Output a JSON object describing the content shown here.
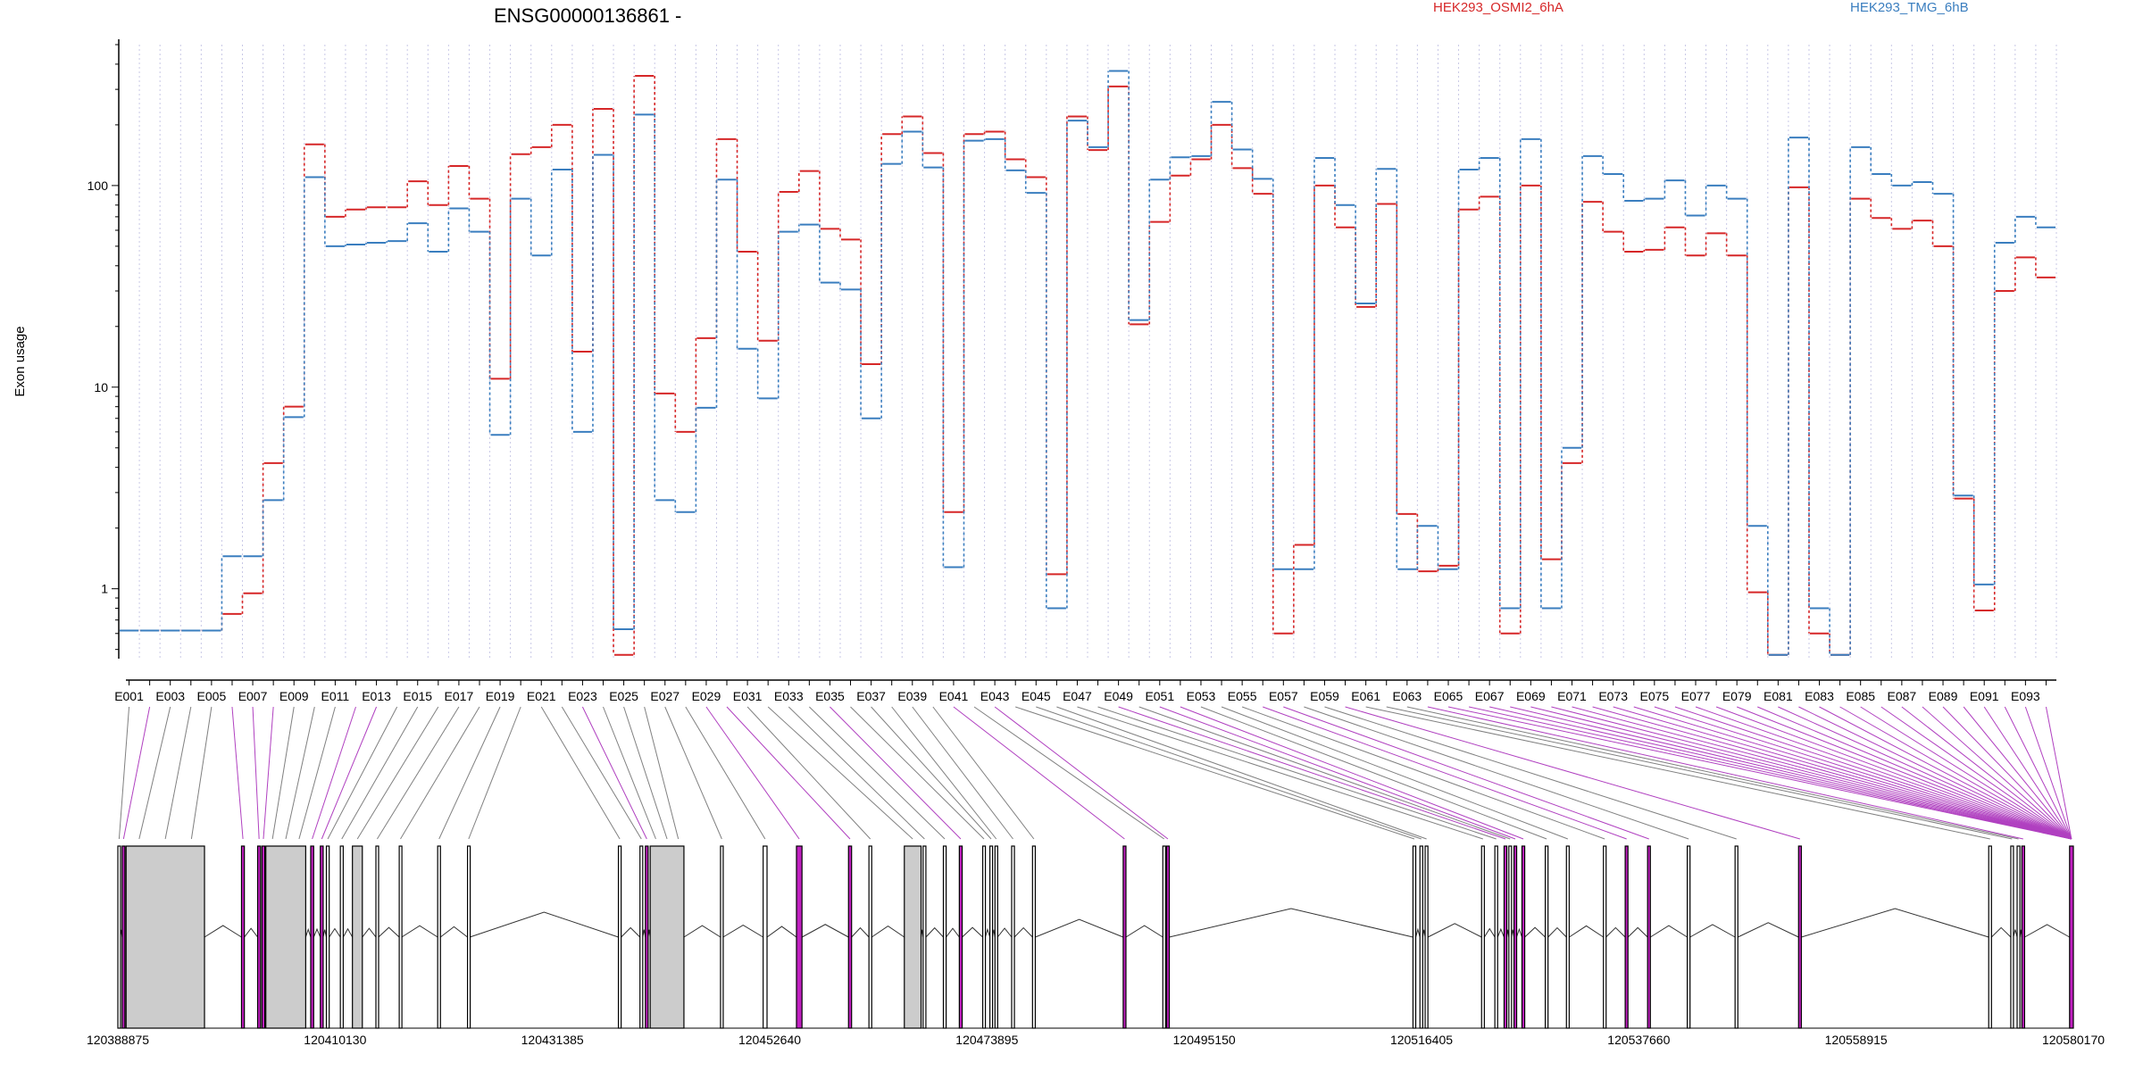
{
  "chart_data": {
    "type": "line",
    "title": "ENSG00000136861 -",
    "ylabel": "Exon usage",
    "y_scale": "log",
    "ylim": [
      0.45,
      500
    ],
    "y_ticks": [
      {
        "value": 1,
        "label": "1"
      },
      {
        "value": 10,
        "label": "10"
      },
      {
        "value": 100,
        "label": "100"
      }
    ],
    "grid": "vertical dotted lines at each exon bin",
    "legend_position": "top",
    "colors": {
      "HEK293_OSMI2_6hA": "#d62728",
      "HEK293_TMG_6hB": "#3a7ebf",
      "exon_highlight": "#c020c0",
      "exon_grey": "#cccccc"
    },
    "categories": [
      "E001",
      "E002",
      "E003",
      "E004",
      "E005",
      "E006",
      "E007",
      "E008",
      "E009",
      "E010",
      "E011",
      "E012",
      "E013",
      "E014",
      "E015",
      "E016",
      "E017",
      "E018",
      "E019",
      "E020",
      "E021",
      "E022",
      "E023",
      "E024",
      "E025",
      "E026",
      "E027",
      "E028",
      "E029",
      "E030",
      "E031",
      "E032",
      "E033",
      "E034",
      "E035",
      "E036",
      "E037",
      "E038",
      "E039",
      "E040",
      "E041",
      "E042",
      "E043",
      "E044",
      "E045",
      "E046",
      "E047",
      "E048",
      "E049",
      "E050",
      "E051",
      "E052",
      "E053",
      "E054",
      "E055",
      "E056",
      "E057",
      "E058",
      "E059",
      "E060",
      "E061",
      "E062",
      "E063",
      "E064",
      "E065",
      "E066",
      "E067",
      "E068",
      "E069",
      "E070",
      "E071",
      "E072",
      "E073",
      "E074",
      "E075",
      "E076",
      "E077",
      "E078",
      "E079",
      "E080",
      "E081",
      "E082",
      "E083",
      "E084",
      "E085",
      "E086",
      "E087",
      "E088",
      "E089",
      "E090",
      "E091",
      "E092",
      "E093",
      "E094"
    ],
    "x_tick_labels": [
      "E001",
      "E003",
      "E005",
      "E007",
      "E009",
      "E011",
      "E013",
      "E015",
      "E017",
      "E019",
      "E021",
      "E023",
      "E025",
      "E027",
      "E029",
      "E031",
      "E033",
      "E035",
      "E037",
      "E039",
      "E041",
      "E043",
      "E045",
      "E047",
      "E049",
      "E051",
      "E053",
      "E055",
      "E057",
      "E059",
      "E061",
      "E063",
      "E065",
      "E067",
      "E069",
      "E071",
      "E073",
      "E075",
      "E077",
      "E079",
      "E081",
      "E083",
      "E085",
      "E087",
      "E089",
      "E091",
      "E093"
    ],
    "series": [
      {
        "name": "HEK293_OSMI2_6hA",
        "values": [
          0.62,
          0.62,
          0.62,
          0.62,
          0.62,
          0.75,
          0.95,
          4.2,
          8,
          160,
          70,
          76,
          78,
          78,
          105,
          80,
          125,
          86,
          11,
          143,
          155,
          200,
          15,
          240,
          0.47,
          350,
          9.3,
          6,
          17.5,
          170,
          47,
          17,
          93,
          118,
          61,
          54,
          13,
          180,
          220,
          145,
          2.4,
          180,
          185,
          135,
          110,
          1.18,
          220,
          150,
          310,
          20.5,
          66,
          112,
          135,
          200,
          122,
          91,
          0.6,
          1.65,
          100,
          62,
          25,
          81,
          2.35,
          1.22,
          1.3,
          76,
          88,
          0.6,
          100,
          1.4,
          4.2,
          83,
          59,
          47,
          48,
          62,
          45,
          58,
          45,
          0.96,
          0.47,
          98,
          0.6,
          0.47,
          86,
          69,
          61,
          67,
          50,
          2.8,
          0.78,
          30,
          44,
          35
        ]
      },
      {
        "name": "HEK293_TMG_6hB",
        "values": [
          0.62,
          0.62,
          0.62,
          0.62,
          0.62,
          1.45,
          1.45,
          2.75,
          7.1,
          110,
          50,
          51,
          52,
          53,
          65,
          47,
          77,
          59,
          5.8,
          86,
          45,
          120,
          6,
          142,
          0.63,
          225,
          2.75,
          2.4,
          7.9,
          107,
          15.5,
          8.8,
          59,
          64,
          33,
          30.5,
          7,
          128,
          185,
          123,
          1.28,
          167,
          170,
          119,
          92,
          0.8,
          210,
          155,
          370,
          21.5,
          107,
          138,
          140,
          260,
          151,
          108,
          1.25,
          1.25,
          137,
          80,
          26,
          121,
          1.25,
          2.05,
          1.25,
          120,
          137,
          0.8,
          170,
          0.8,
          5,
          140,
          114,
          84,
          86,
          106,
          71,
          100,
          86,
          2.05,
          0.47,
          173,
          0.8,
          0.47,
          155,
          114,
          100,
          104,
          91,
          2.9,
          1.05,
          52,
          70,
          62
        ]
      }
    ]
  },
  "gene_model": {
    "coordinate_labels": [
      "120388875",
      "120410130",
      "120431385",
      "120452640",
      "120473895",
      "120495150",
      "120516405",
      "120537660",
      "120558915",
      "120580170"
    ],
    "genomic_range": [
      120388875,
      120580170
    ],
    "exons": [
      {
        "start": 120388875,
        "end": 120389120,
        "highlight": false
      },
      {
        "start": 120389300,
        "end": 120389560,
        "highlight": true
      },
      {
        "start": 120389680,
        "end": 120397350,
        "highlight": false
      },
      {
        "start": 120400970,
        "end": 120401250,
        "highlight": true
      },
      {
        "start": 120402550,
        "end": 120402830,
        "highlight": true
      },
      {
        "start": 120402970,
        "end": 120403250,
        "highlight": true
      },
      {
        "start": 120403350,
        "end": 120407250,
        "highlight": false
      },
      {
        "start": 120407740,
        "end": 120408030,
        "highlight": true
      },
      {
        "start": 120408680,
        "end": 120408960,
        "highlight": true
      },
      {
        "start": 120409270,
        "end": 120409550,
        "highlight": false
      },
      {
        "start": 120410640,
        "end": 120410920,
        "highlight": false
      },
      {
        "start": 120411820,
        "end": 120412790,
        "highlight": false
      },
      {
        "start": 120414120,
        "end": 120414370,
        "highlight": false
      },
      {
        "start": 120416400,
        "end": 120416640,
        "highlight": false
      },
      {
        "start": 120420160,
        "end": 120420430,
        "highlight": false
      },
      {
        "start": 120423080,
        "end": 120423300,
        "highlight": false
      },
      {
        "start": 120437840,
        "end": 120438110,
        "highlight": false
      },
      {
        "start": 120439950,
        "end": 120440220,
        "highlight": false
      },
      {
        "start": 120440480,
        "end": 120440750,
        "highlight": true
      },
      {
        "start": 120440950,
        "end": 120444250,
        "highlight": false
      },
      {
        "start": 120447830,
        "end": 120448080,
        "highlight": false
      },
      {
        "start": 120452000,
        "end": 120452380,
        "highlight": false
      },
      {
        "start": 120455260,
        "end": 120455800,
        "highlight": true
      },
      {
        "start": 120460350,
        "end": 120460650,
        "highlight": true
      },
      {
        "start": 120462350,
        "end": 120462620,
        "highlight": false
      },
      {
        "start": 120465810,
        "end": 120467450,
        "highlight": false
      },
      {
        "start": 120467650,
        "end": 120467920,
        "highlight": false
      },
      {
        "start": 120469630,
        "end": 120469900,
        "highlight": false
      },
      {
        "start": 120471190,
        "end": 120471470,
        "highlight": true
      },
      {
        "start": 120473480,
        "end": 120473730,
        "highlight": false
      },
      {
        "start": 120474180,
        "end": 120474430,
        "highlight": false
      },
      {
        "start": 120474680,
        "end": 120474930,
        "highlight": false
      },
      {
        "start": 120476310,
        "end": 120476580,
        "highlight": false
      },
      {
        "start": 120478350,
        "end": 120478620,
        "highlight": false
      },
      {
        "start": 120487220,
        "end": 120487490,
        "highlight": true
      },
      {
        "start": 120491100,
        "end": 120491350,
        "highlight": false
      },
      {
        "start": 120491470,
        "end": 120491720,
        "highlight": true
      },
      {
        "start": 120515570,
        "end": 120515840,
        "highlight": false
      },
      {
        "start": 120516250,
        "end": 120516520,
        "highlight": false
      },
      {
        "start": 120516760,
        "end": 120517030,
        "highlight": false
      },
      {
        "start": 120522280,
        "end": 120522550,
        "highlight": false
      },
      {
        "start": 120523580,
        "end": 120523850,
        "highlight": false
      },
      {
        "start": 120524480,
        "end": 120524750,
        "highlight": true
      },
      {
        "start": 120524950,
        "end": 120525200,
        "highlight": false
      },
      {
        "start": 120525450,
        "end": 120525700,
        "highlight": true
      },
      {
        "start": 120526230,
        "end": 120526500,
        "highlight": true
      },
      {
        "start": 120528510,
        "end": 120528780,
        "highlight": false
      },
      {
        "start": 120530580,
        "end": 120530850,
        "highlight": false
      },
      {
        "start": 120534200,
        "end": 120534450,
        "highlight": false
      },
      {
        "start": 120536330,
        "end": 120536600,
        "highlight": true
      },
      {
        "start": 120538520,
        "end": 120538790,
        "highlight": true
      },
      {
        "start": 120542400,
        "end": 120542670,
        "highlight": false
      },
      {
        "start": 120547080,
        "end": 120547350,
        "highlight": false
      },
      {
        "start": 120553290,
        "end": 120553560,
        "highlight": true
      },
      {
        "start": 120571890,
        "end": 120572160,
        "highlight": false
      },
      {
        "start": 120574050,
        "end": 120574300,
        "highlight": false
      },
      {
        "start": 120574670,
        "end": 120574940,
        "highlight": false
      },
      {
        "start": 120575130,
        "end": 120575400,
        "highlight": true
      },
      {
        "start": 120579800,
        "end": 120580170,
        "highlight": true
      }
    ]
  }
}
